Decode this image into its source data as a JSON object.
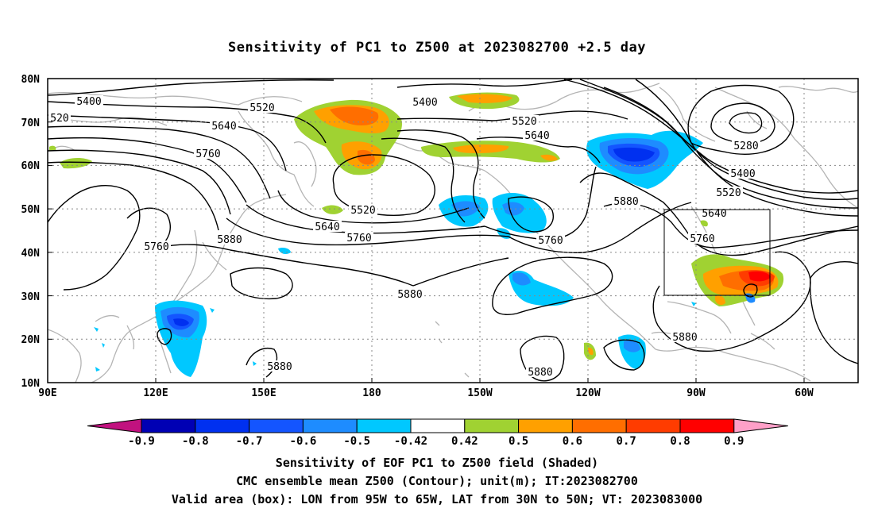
{
  "title": "Sensitivity of PC1 to Z500 at 2023082700 +2.5 day",
  "lat_labels": [
    "80N",
    "70N",
    "60N",
    "50N",
    "40N",
    "30N",
    "20N",
    "10N"
  ],
  "lon_labels": [
    "90E",
    "120E",
    "150E",
    "180",
    "150W",
    "120W",
    "90W",
    "60W"
  ],
  "contour_labels": [
    "5400",
    "5400",
    "5520",
    "5520",
    "5640",
    "5640",
    "5760",
    "5880",
    "5520",
    "5640",
    "5760",
    "5760",
    "5760",
    "5880",
    "5880",
    "5880",
    "5880",
    "5880",
    "5280",
    "5400",
    "5520",
    "5640",
    "5760",
    "520"
  ],
  "colorbar": {
    "ticks": [
      "-0.9",
      "-0.8",
      "-0.7",
      "-0.6",
      "-0.5",
      "-0.42",
      "0.42",
      "0.5",
      "0.6",
      "0.7",
      "0.8",
      "0.9"
    ],
    "colors": [
      "#c1127f",
      "#0000b4",
      "#0030f0",
      "#1455ff",
      "#1e8cff",
      "#00c8ff",
      "#ffffff",
      "#a0d232",
      "#ffa000",
      "#ff6e00",
      "#ff3c00",
      "#ff0000",
      "#ffa0c8"
    ]
  },
  "valid_box": {
    "lon_range": [
      "95W",
      "65W"
    ],
    "lat_range": [
      "30N",
      "50N"
    ]
  },
  "captions": {
    "line1": "Sensitivity of EOF PC1 to Z500 field (Shaded)",
    "line2": "CMC ensemble mean Z500 (Contour); unit(m); IT:2023082700",
    "line3": "Valid area (box): LON from 95W to 65W, LAT from 30N to 50N; VT: 2023083000"
  }
}
